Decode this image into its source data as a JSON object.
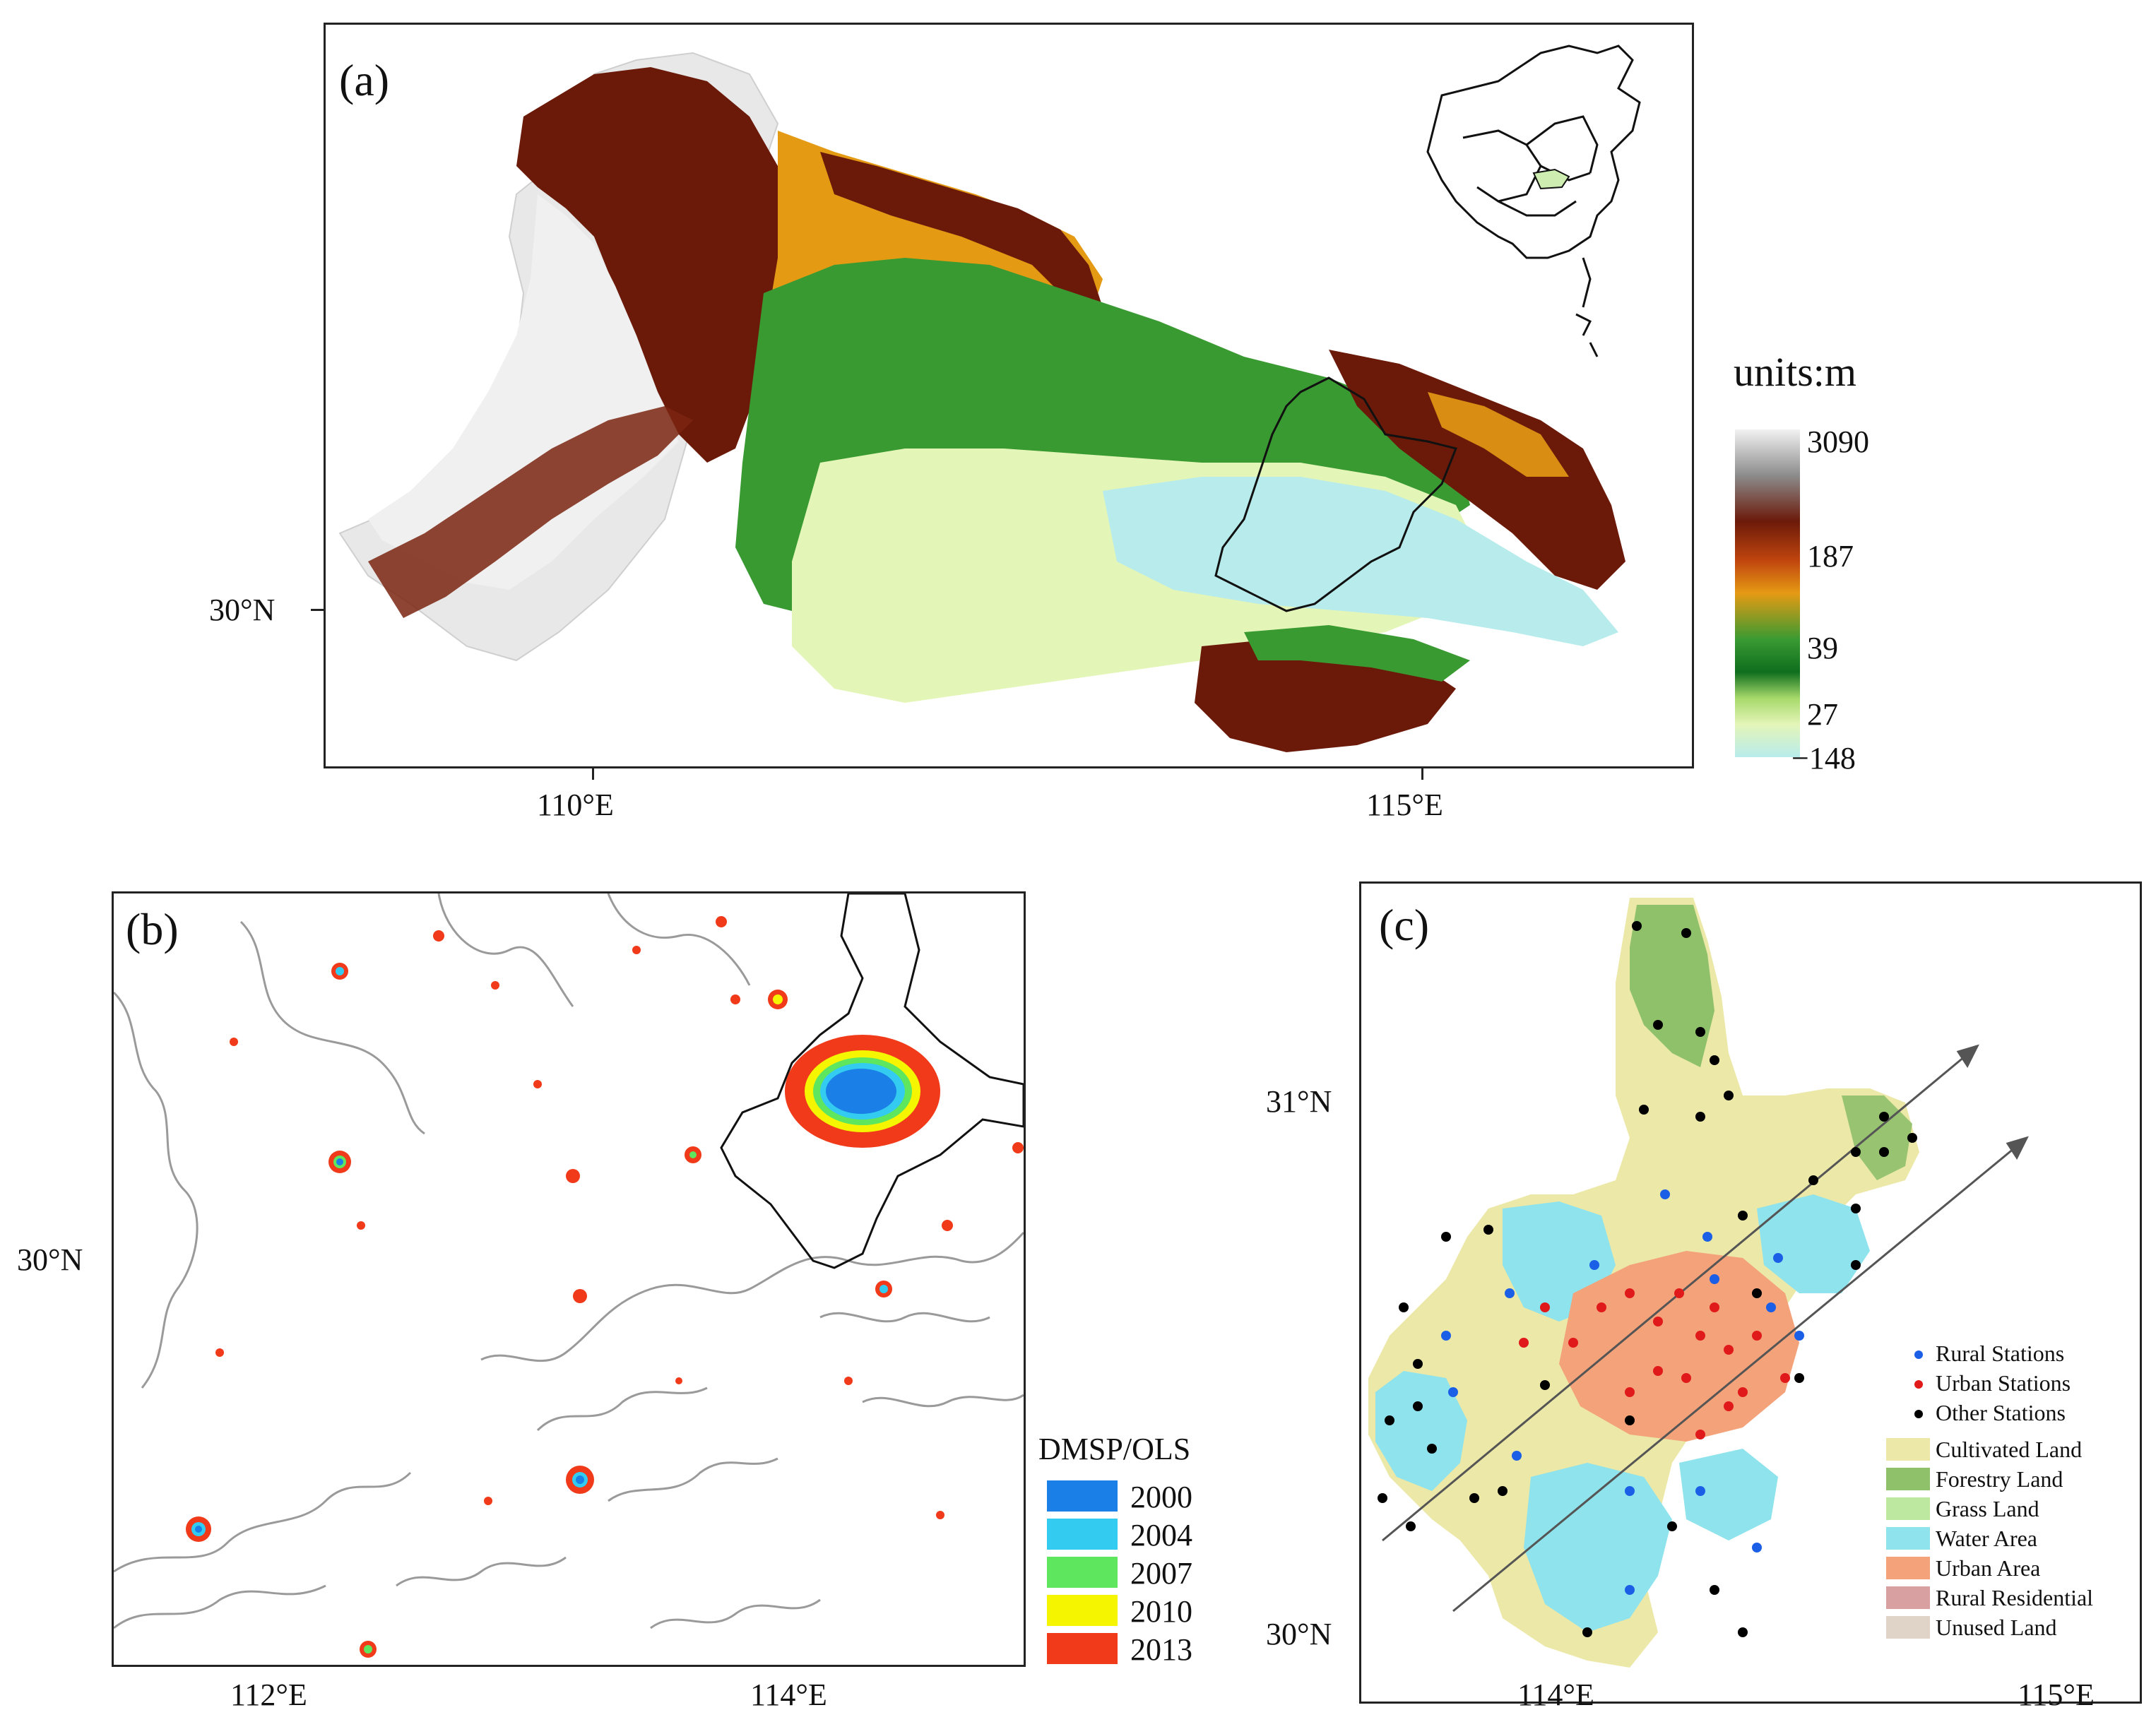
{
  "panel_a": {
    "label": "(a)",
    "lat_tick": "30°N",
    "lon_ticks": [
      "110°E",
      "115°E"
    ],
    "colorbar_title": "units:m",
    "colorbar_ticks": [
      "3090",
      "187",
      "39",
      "27",
      "−148"
    ],
    "colors": {
      "high": "#f2f2f2",
      "mid_high": "#6b1a0a",
      "mid": "#e59a14",
      "low": "#3a9a32",
      "lowest": "#e4f5b8",
      "water": "#b8ecec"
    }
  },
  "panel_b": {
    "label": "(b)",
    "lat_tick": "30°N",
    "lon_ticks": [
      "112°E",
      "114°E"
    ],
    "legend_title": "DMSP/OLS",
    "legend": [
      {
        "label": "2000",
        "color": "#1a7fe6"
      },
      {
        "label": "2004",
        "color": "#33ccf0"
      },
      {
        "label": "2007",
        "color": "#5ee65e"
      },
      {
        "label": "2010",
        "color": "#f5f500"
      },
      {
        "label": "2013",
        "color": "#f03a1a"
      }
    ]
  },
  "panel_c": {
    "label": "(c)",
    "lat_ticks": [
      "31°N",
      "30°N"
    ],
    "lon_ticks": [
      "114°E",
      "115°E"
    ],
    "stations": [
      {
        "label": "Rural Stations",
        "color": "#1a5fe6"
      },
      {
        "label": "Urban Stations",
        "color": "#e01a1a"
      },
      {
        "label": "Other Stations",
        "color": "#000000"
      }
    ],
    "landuse": [
      {
        "label": "Cultivated Land",
        "color": "#ece8a8"
      },
      {
        "label": "Forestry Land",
        "color": "#8fc06a"
      },
      {
        "label": "Grass Land",
        "color": "#bde8a0"
      },
      {
        "label": "Water Area",
        "color": "#8fe3ec"
      },
      {
        "label": "Urban Area",
        "color": "#f4a27a"
      },
      {
        "label": "Rural Residential",
        "color": "#d8a0a0"
      },
      {
        "label": "Unused Land",
        "color": "#e0d4c8"
      }
    ]
  }
}
